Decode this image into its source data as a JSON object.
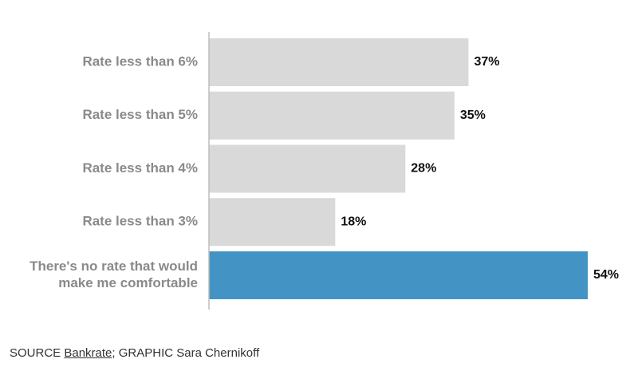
{
  "chart_data": {
    "type": "bar",
    "orientation": "horizontal",
    "categories": [
      [
        "Rate less than 6%"
      ],
      [
        "Rate less than 5%"
      ],
      [
        "Rate less than 4%"
      ],
      [
        "Rate less than 3%"
      ],
      [
        "There's no rate that would",
        "make me comfortable"
      ]
    ],
    "values": [
      37,
      35,
      28,
      18,
      54
    ],
    "value_labels": [
      "37%",
      "35%",
      "28%",
      "18%",
      "54%"
    ],
    "colors": [
      "#d9d9d9",
      "#d9d9d9",
      "#d9d9d9",
      "#d9d9d9",
      "#4394c4"
    ],
    "axis_color": "#bdbdbd",
    "xlim": [
      0,
      54
    ],
    "grid": false,
    "legend": "none"
  },
  "footer": {
    "source_prefix": "SOURCE ",
    "source_name": "Bankrate",
    "separator": "; ",
    "graphic_credit": "GRAPHIC Sara Chernikoff"
  }
}
